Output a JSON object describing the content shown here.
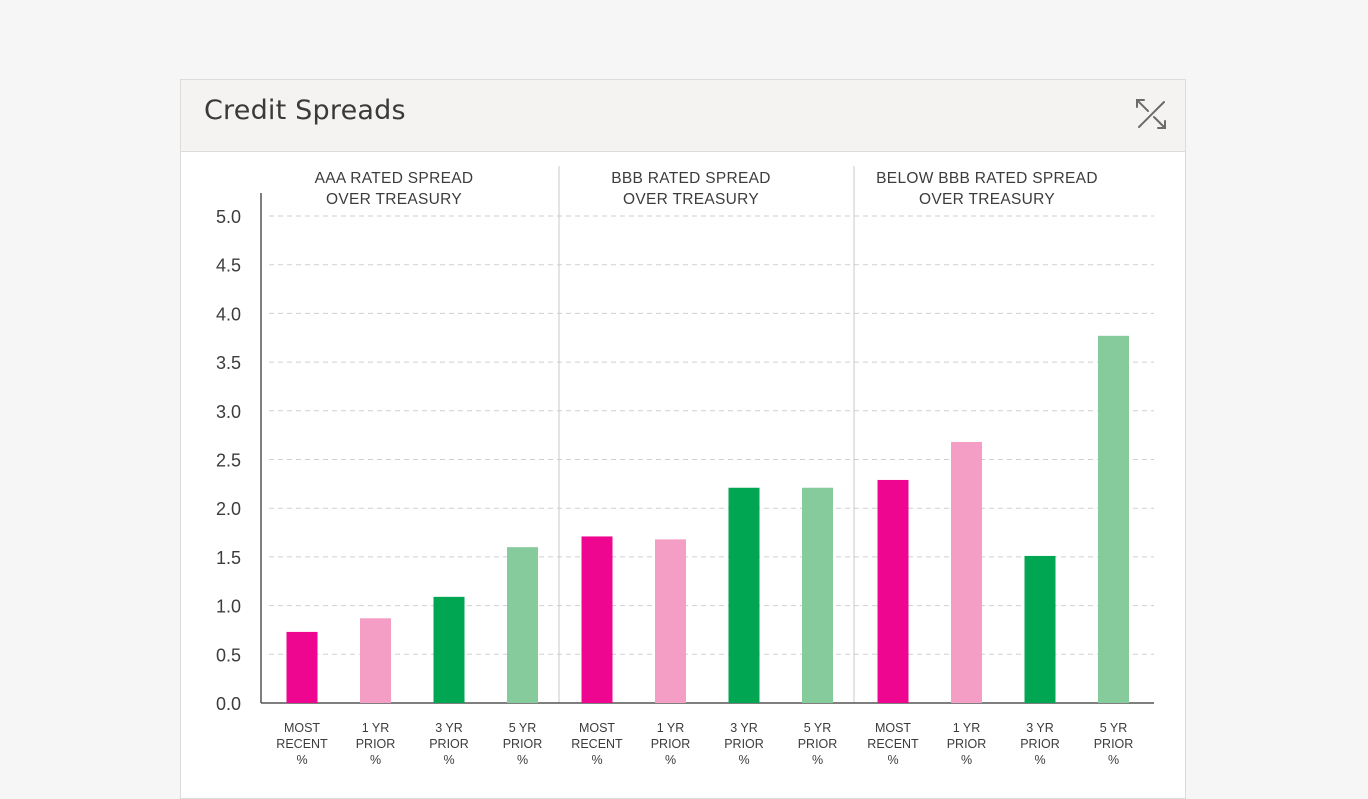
{
  "panel": {
    "title": "Credit Spreads",
    "expand_icon": "expand-diagonal-icon"
  },
  "chart_data": {
    "type": "bar",
    "y_ticks": [
      "5.0",
      "4.5",
      "4.0",
      "3.5",
      "3.0",
      "2.5",
      "2.0",
      "1.5",
      "1.0",
      "0.5",
      "0.0"
    ],
    "ylim": [
      0,
      5.0
    ],
    "grid": true,
    "category_labels": [
      [
        "MOST",
        "RECENT",
        "%"
      ],
      [
        "1 YR",
        "PRIOR",
        "%"
      ],
      [
        "3 YR",
        "PRIOR",
        "%"
      ],
      [
        "5 YR",
        "PRIOR",
        "%"
      ]
    ],
    "groups": [
      {
        "title_lines": [
          "AAA RATED SPREAD",
          "OVER TREASURY"
        ],
        "values": [
          0.73,
          0.87,
          1.09,
          1.6
        ]
      },
      {
        "title_lines": [
          "BBB RATED SPREAD",
          "OVER TREASURY"
        ],
        "values": [
          1.71,
          1.68,
          2.21,
          2.21
        ]
      },
      {
        "title_lines": [
          "BELOW BBB RATED SPREAD",
          "OVER TREASURY"
        ],
        "values": [
          2.29,
          2.68,
          1.51,
          3.77
        ]
      }
    ],
    "bar_colors": [
      "#ee0590",
      "#f49dc5",
      "#00a651",
      "#85cb9c"
    ]
  }
}
